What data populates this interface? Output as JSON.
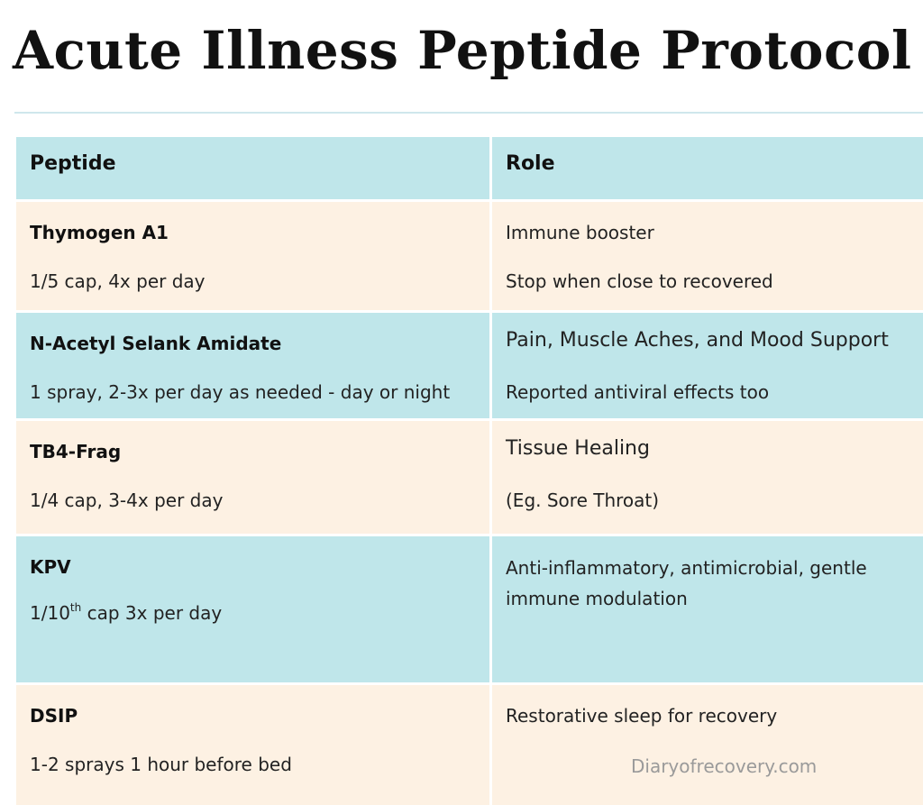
{
  "title": "Acute Illness Peptide Protocol",
  "header": {
    "col1": "Peptide",
    "col2": "Role"
  },
  "rows": [
    {
      "name": "Thymogen A1",
      "dose": "1/5 cap, 4x per day",
      "role": "Immune booster",
      "note": "Stop when close to recovered"
    },
    {
      "name": "N-Acetyl Selank Amidate",
      "dose": "1 spray, 2-3x per day as needed - day or night",
      "role": "Pain, Muscle Aches, and Mood Support",
      "note": "Reported antiviral effects too"
    },
    {
      "name": "TB4-Frag",
      "dose": "1/4 cap, 3-4x per day",
      "role": "Tissue Healing",
      "note": "(Eg. Sore Throat)"
    },
    {
      "name": "KPV",
      "dose_prefix": "1/10",
      "dose_sup": "th",
      "dose_suffix": " cap 3x per day",
      "role": "Anti-inflammatory, antimicrobial, gentle immune modulation"
    },
    {
      "name": "DSIP",
      "dose": "1-2 sprays 1 hour before bed",
      "role": "Restorative sleep for recovery"
    }
  ],
  "watermark": "Diaryofrecovery.com",
  "colors": {
    "header_bg": "#bfe6ea",
    "peach_row": "#fdf1e3",
    "blue_row": "#bfe6ea",
    "rule": "#cfe7ec"
  }
}
